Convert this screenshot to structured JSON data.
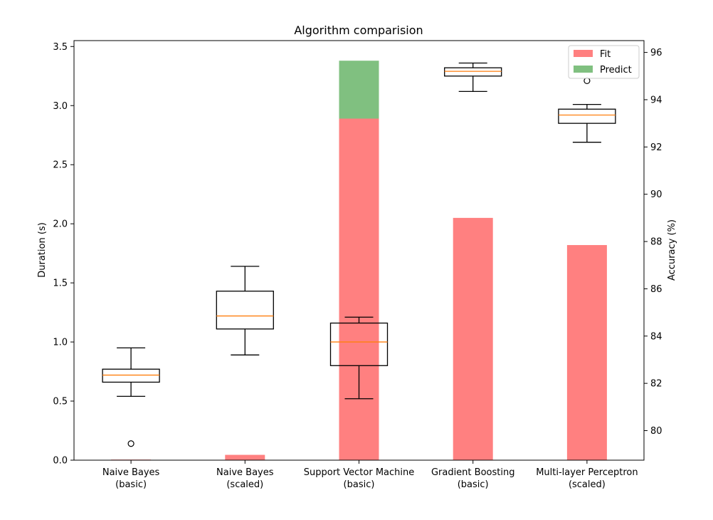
{
  "chart_data": {
    "type": "bar+boxplot",
    "title": "Algorithm comparision",
    "ylabel_left": "Duration (s)",
    "ylabel_right": "Accuracy (%)",
    "categories": [
      [
        "Naive Bayes",
        "(basic)"
      ],
      [
        "Naive Bayes",
        "(scaled)"
      ],
      [
        "Support Vector Machine",
        "(basic)"
      ],
      [
        "Gradient Boosting",
        "(basic)"
      ],
      [
        "Multi-layer Perceptron",
        "(scaled)"
      ]
    ],
    "left_axis": {
      "ylim": [
        0,
        3.55
      ],
      "ticks": [
        0.0,
        0.5,
        1.0,
        1.5,
        2.0,
        2.5,
        3.0,
        3.5
      ],
      "tick_labels": [
        "0.0",
        "0.5",
        "1.0",
        "1.5",
        "2.0",
        "2.5",
        "3.0",
        "3.5"
      ]
    },
    "right_axis": {
      "ylim": [
        78.75,
        96.5
      ],
      "ticks": [
        80,
        82,
        84,
        86,
        88,
        90,
        92,
        94,
        96
      ],
      "tick_labels": [
        "80",
        "82",
        "84",
        "86",
        "88",
        "90",
        "92",
        "94",
        "96"
      ]
    },
    "series": [
      {
        "name": "Fit",
        "color": "#ff8080",
        "values": [
          0.005,
          0.045,
          2.89,
          2.05,
          1.82
        ]
      },
      {
        "name": "Predict",
        "color": "#80c080",
        "values": [
          0.0,
          0.0,
          0.49,
          0.0,
          0.0
        ]
      }
    ],
    "boxplots": [
      {
        "whislo": 81.45,
        "q1": 82.05,
        "med": 82.35,
        "q3": 82.6,
        "whishi": 83.5,
        "fliers": [
          79.45
        ]
      },
      {
        "whislo": 83.2,
        "q1": 84.3,
        "med": 84.85,
        "q3": 85.9,
        "whishi": 86.95,
        "fliers": []
      },
      {
        "whislo": 81.35,
        "q1": 82.75,
        "med": 83.75,
        "q3": 84.55,
        "whishi": 84.8,
        "fliers": []
      },
      {
        "whislo": 94.35,
        "q1": 95.0,
        "med": 95.2,
        "q3": 95.35,
        "whishi": 95.55,
        "fliers": []
      },
      {
        "whislo": 92.2,
        "q1": 93.0,
        "med": 93.35,
        "q3": 93.6,
        "whishi": 93.8,
        "fliers": [
          94.8
        ]
      }
    ],
    "legend": {
      "position": "top-right",
      "entries": [
        "Fit",
        "Predict"
      ]
    },
    "median_color": "#ff7f0e",
    "grid": false
  }
}
